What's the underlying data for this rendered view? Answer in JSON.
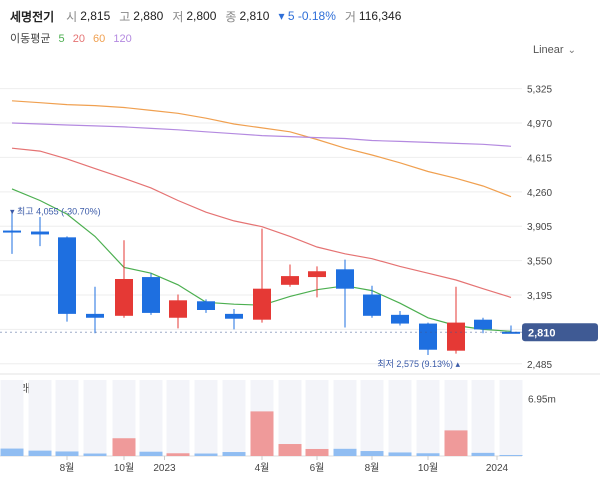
{
  "header": {
    "name": "세명전기",
    "open_label": "시",
    "open": "2,815",
    "high_label": "고",
    "high": "2,880",
    "low_label": "저",
    "low": "2,800",
    "close_label": "종",
    "close": "2,810",
    "change": "▾ 5 -0.18%",
    "volume_label": "거",
    "volume": "116,346"
  },
  "ma_legend": {
    "label": "이동평균",
    "p5": "5",
    "p20": "20",
    "p60": "60",
    "p120": "120",
    "colors": {
      "p5": "#4caf50",
      "p20": "#e57373",
      "p60": "#f0a050",
      "p120": "#b48ae0"
    }
  },
  "scale_button": {
    "label": "Linear",
    "icon": "chevron-down-icon"
  },
  "volume_panel": {
    "title": "거래량",
    "tick": "6.95m"
  },
  "current_price_label": "2,810",
  "annotations": {
    "high": "▾ 최고 4,055 (-30.70%)",
    "low": "최저 2,575 (9.13%) ▴"
  },
  "colors": {
    "up": "#e53935",
    "down": "#1e6fe0",
    "up_volume": "#ef9a9a",
    "down_volume": "#90bdf2",
    "current_tag": "#3f5a94"
  },
  "chart_data": [
    {
      "type": "candlestick",
      "title": "",
      "scale": "linear",
      "ylim": [
        2400,
        5600
      ],
      "y_ticks": [
        "5,325",
        "4,970",
        "4,615",
        "4,260",
        "3,905",
        "3,550",
        "3,195",
        "2,840",
        "2,485"
      ],
      "x_ticks": [
        "8월",
        "10월",
        "2023",
        "4월",
        "6월",
        "8월",
        "10월",
        "2024"
      ],
      "candles": [
        {
          "open": 3860,
          "high": 4055,
          "low": 3620,
          "close": 3840
        },
        {
          "open": 3850,
          "high": 4000,
          "low": 3700,
          "close": 3820
        },
        {
          "open": 3790,
          "high": 3800,
          "low": 2920,
          "close": 3000
        },
        {
          "open": 3000,
          "high": 3280,
          "low": 2800,
          "close": 2960
        },
        {
          "open": 2980,
          "high": 3760,
          "low": 2960,
          "close": 3360
        },
        {
          "open": 3380,
          "high": 3420,
          "low": 2990,
          "close": 3010
        },
        {
          "open": 2960,
          "high": 3200,
          "low": 2850,
          "close": 3140
        },
        {
          "open": 3130,
          "high": 3150,
          "low": 3010,
          "close": 3040
        },
        {
          "open": 3000,
          "high": 3050,
          "low": 2840,
          "close": 2950
        },
        {
          "open": 2940,
          "high": 3880,
          "low": 2910,
          "close": 3260
        },
        {
          "open": 3300,
          "high": 3510,
          "low": 3280,
          "close": 3390
        },
        {
          "open": 3380,
          "high": 3490,
          "low": 3170,
          "close": 3440
        },
        {
          "open": 3460,
          "high": 3560,
          "low": 2860,
          "close": 3260
        },
        {
          "open": 3200,
          "high": 3290,
          "low": 2960,
          "close": 2980
        },
        {
          "open": 2990,
          "high": 3030,
          "low": 2880,
          "close": 2900
        },
        {
          "open": 2900,
          "high": 2910,
          "low": 2575,
          "close": 2630
        },
        {
          "open": 2620,
          "high": 3280,
          "low": 2590,
          "close": 2910
        },
        {
          "open": 2940,
          "high": 2960,
          "low": 2800,
          "close": 2840
        },
        {
          "open": 2815,
          "high": 2880,
          "low": 2800,
          "close": 2810
        }
      ],
      "moving_averages": [
        {
          "name": "5",
          "values": [
            4290,
            4170,
            4030,
            3800,
            3480,
            3420,
            3300,
            3120,
            3100,
            3090,
            3180,
            3250,
            3290,
            3240,
            3110,
            2960,
            2880,
            2840,
            2820
          ]
        },
        {
          "name": "20",
          "values": [
            4710,
            4680,
            4600,
            4500,
            4400,
            4300,
            4170,
            4050,
            3960,
            3900,
            3800,
            3690,
            3620,
            3570,
            3490,
            3420,
            3350,
            3260,
            3170
          ]
        },
        {
          "name": "60",
          "values": [
            5200,
            5180,
            5160,
            5150,
            5130,
            5100,
            5070,
            5020,
            4960,
            4920,
            4880,
            4800,
            4710,
            4640,
            4560,
            4470,
            4400,
            4320,
            4210
          ]
        },
        {
          "name": "120",
          "values": [
            4970,
            4960,
            4950,
            4940,
            4930,
            4915,
            4900,
            4880,
            4860,
            4840,
            4830,
            4820,
            4810,
            4790,
            4780,
            4770,
            4760,
            4750,
            4730
          ]
        }
      ]
    },
    {
      "type": "bar",
      "title": "거래량",
      "y_ticks": [
        "6.95m"
      ],
      "ylim": [
        0,
        9200000
      ],
      "values": [
        900000,
        650000,
        550000,
        300000,
        2150000,
        520000,
        330000,
        300000,
        480000,
        5400000,
        1450000,
        850000,
        870000,
        600000,
        430000,
        330000,
        3100000,
        380000,
        120000
      ]
    }
  ]
}
